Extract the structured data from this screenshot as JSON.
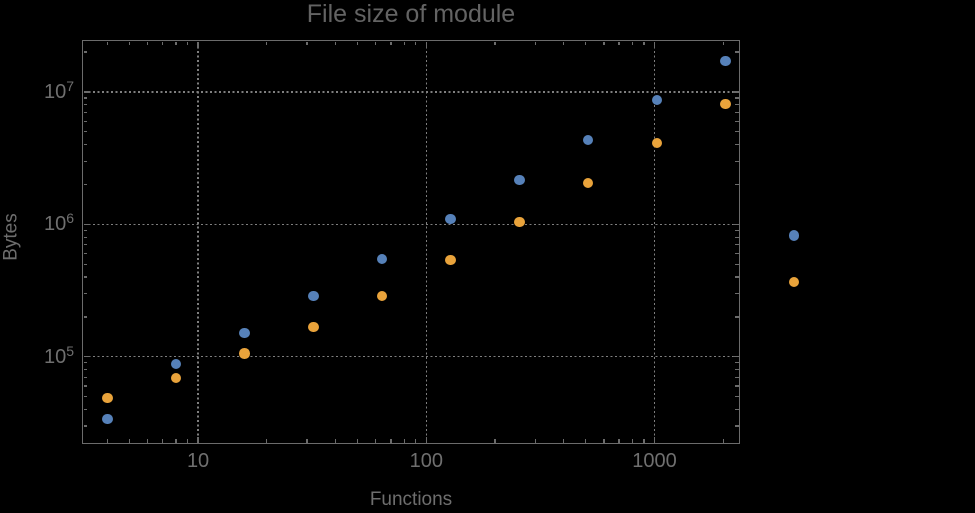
{
  "chart_data": {
    "type": "scatter",
    "title": "File size of module",
    "xlabel": "Functions",
    "ylabel": "Bytes",
    "x_scale": "log",
    "y_scale": "log",
    "xlim": [
      3.1,
      2370
    ],
    "ylim": [
      21900,
      24700000
    ],
    "x_ticks": [
      10,
      100,
      1000
    ],
    "x_tick_labels": [
      "10",
      "100",
      "1000"
    ],
    "y_ticks": [
      100000,
      1000000,
      10000000
    ],
    "y_tick_labels": [
      "10^5",
      "10^6",
      "10^7"
    ],
    "grid": "dotted gray lines at decade ticks",
    "legend": "none",
    "layout_note": "last point of each series (x=4096) is drawn outside the right edge of the plot frame",
    "series": [
      {
        "name": "series-blue",
        "color": "#5681B9",
        "points": [
          [
            4,
            33700
          ],
          [
            8,
            87900
          ],
          [
            16,
            151000
          ],
          [
            32,
            287000
          ],
          [
            64,
            546000
          ],
          [
            128,
            1100000
          ],
          [
            256,
            2160000
          ],
          [
            512,
            4340000
          ],
          [
            1024,
            8700000
          ],
          [
            2048,
            17100000
          ],
          [
            4096,
            820000
          ]
        ]
      },
      {
        "name": "series-orange",
        "color": "#E9A33B",
        "points": [
          [
            4,
            48600
          ],
          [
            8,
            68900
          ],
          [
            16,
            106000
          ],
          [
            32,
            167000
          ],
          [
            64,
            287000
          ],
          [
            128,
            538000
          ],
          [
            256,
            1040000
          ],
          [
            512,
            2050000
          ],
          [
            1024,
            4110000
          ],
          [
            2048,
            8100000
          ],
          [
            4096,
            367000
          ]
        ]
      }
    ]
  },
  "style_colors": {
    "background": "#000000",
    "frame": "#6b6b6b",
    "gridline": "#7f7f7f",
    "title_text": "#636363",
    "label_text": "#6e6e6e",
    "tick_text": "#6f6f6f"
  }
}
